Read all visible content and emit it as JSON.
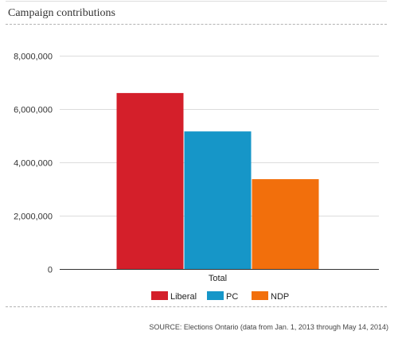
{
  "title": "Campaign contributions",
  "source": "SOURCE: Elections Ontario (data from Jan. 1, 2013 through May 14, 2014)",
  "chart_data": {
    "type": "bar",
    "categories": [
      "Total"
    ],
    "series": [
      {
        "name": "Liberal",
        "values": [
          6600000
        ],
        "color": "#d41f2a"
      },
      {
        "name": "PC",
        "values": [
          5160000
        ],
        "color": "#1696c8"
      },
      {
        "name": "NDP",
        "values": [
          3370000
        ],
        "color": "#f26f0c"
      }
    ],
    "ylim": [
      0,
      8000000
    ],
    "yticks": [
      0,
      2000000,
      4000000,
      6000000,
      8000000
    ],
    "ytick_labels": [
      "0",
      "2,000,000",
      "4,000,000",
      "6,000,000",
      "8,000,000"
    ],
    "xlabel": "",
    "ylabel": "",
    "grid": true,
    "legend_position": "bottom"
  }
}
